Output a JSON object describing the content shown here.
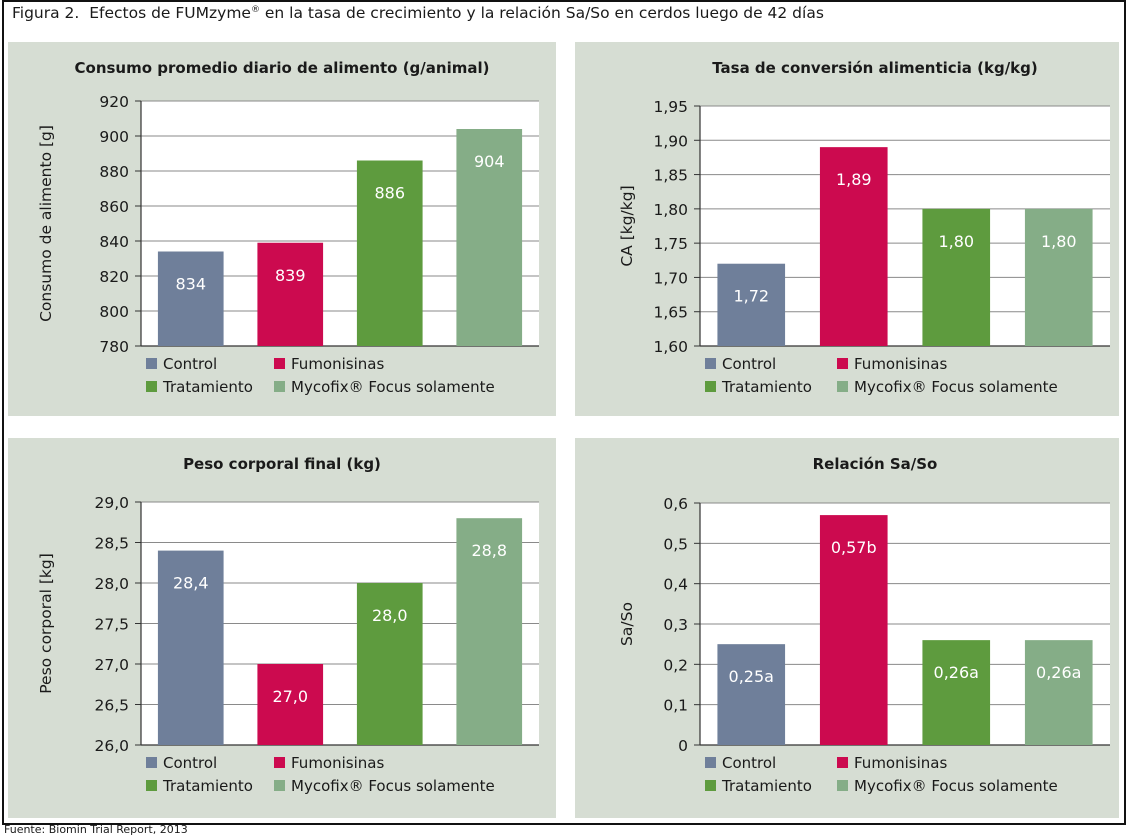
{
  "figure": {
    "label": "Figura 2.",
    "title": "Efectos de FUMzyme",
    "title_mark": "®",
    "title_rest": " en la tasa de crecimiento y la relación Sa/So en cerdos luego de 42 días",
    "source": "Fuente: Biomin Trial Report, 2013"
  },
  "legend": {
    "items": [
      "Control",
      "Fumonisinas",
      "Tratamiento",
      "Mycofix® Focus solamente"
    ]
  },
  "colors": {
    "control": "#6f7f9a",
    "fumonisinas": "#cc0a4f",
    "tratamiento": "#5e9b3e",
    "mycofix": "#85ad87",
    "panel_bg": "#d6ddd3",
    "plot_bg": "#ffffff",
    "grid": "#8a8a8a"
  },
  "chart_data": [
    {
      "type": "bar",
      "title": "Consumo promedio diario de alimento (g/animal)",
      "ylabel": "Consumo de alimento [g]",
      "categories": [
        "Control",
        "Fumonisinas",
        "Tratamiento",
        "Mycofix® Focus solamente"
      ],
      "values": [
        834,
        839,
        886,
        904
      ],
      "data_labels": [
        "834",
        "839",
        "886",
        "904"
      ],
      "ylim": [
        780,
        920
      ],
      "yticks": [
        "780",
        "800",
        "820",
        "840",
        "860",
        "880",
        "900",
        "920"
      ],
      "grid": true,
      "legend": "bottom"
    },
    {
      "type": "bar",
      "title": "Tasa de conversión alimenticia (kg/kg)",
      "ylabel": "CA [kg/kg]",
      "categories": [
        "Control",
        "Fumonisinas",
        "Tratamiento",
        "Mycofix® Focus solamente"
      ],
      "values": [
        1.72,
        1.89,
        1.8,
        1.8
      ],
      "data_labels": [
        "1,72",
        "1,89",
        "1,80",
        "1,80"
      ],
      "ylim": [
        1.6,
        1.95
      ],
      "yticks": [
        "1,60",
        "1,65",
        "1,70",
        "1,75",
        "1,80",
        "1,85",
        "1,90",
        "1,95"
      ],
      "grid": true,
      "legend": "bottom"
    },
    {
      "type": "bar",
      "title": "Peso corporal final (kg)",
      "ylabel": "Peso corporal [kg]",
      "categories": [
        "Control",
        "Fumonisinas",
        "Tratamiento",
        "Mycofix® Focus solamente"
      ],
      "values": [
        28.4,
        27.0,
        28.0,
        28.8
      ],
      "data_labels": [
        "28,4",
        "27,0",
        "28,0",
        "28,8"
      ],
      "ylim": [
        26.0,
        29.0
      ],
      "yticks": [
        "26,0",
        "26,5",
        "27,0",
        "27,5",
        "28,0",
        "28,5",
        "29,0"
      ],
      "grid": true,
      "legend": "bottom"
    },
    {
      "type": "bar",
      "title": "Relación Sa/So",
      "ylabel": "Sa/So",
      "categories": [
        "Control",
        "Fumonisinas",
        "Tratamiento",
        "Mycofix® Focus solamente"
      ],
      "values": [
        0.25,
        0.57,
        0.26,
        0.26
      ],
      "data_labels": [
        "0,25a",
        "0,57b",
        "0,26a",
        "0,26a"
      ],
      "ylim": [
        0,
        0.6
      ],
      "yticks": [
        "0",
        "0,1",
        "0,2",
        "0,3",
        "0,4",
        "0,5",
        "0,6"
      ],
      "grid": true,
      "legend": "bottom"
    }
  ]
}
